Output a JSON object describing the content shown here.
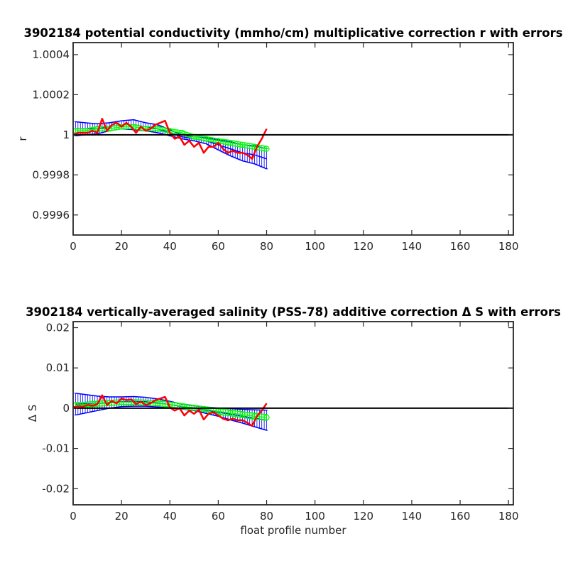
{
  "figure_title": "",
  "chart_data": [
    {
      "type": "line",
      "title": "3902184 potential conductivity (mmho/cm) multiplicative correction r with errors",
      "xlabel": "",
      "ylabel": "r",
      "xlim": [
        0,
        182
      ],
      "ylim": [
        0.9995,
        1.00046
      ],
      "x_ticks": [
        0,
        20,
        40,
        60,
        80,
        100,
        120,
        140,
        160,
        180
      ],
      "y_ticks": [
        0.9996,
        0.9998,
        1,
        1.0002,
        1.0004
      ],
      "y_tick_labels": [
        "0.9996",
        "0.9998",
        "1",
        "1.0002",
        "1.0004"
      ],
      "grid": false,
      "legend": "none",
      "reference_line": {
        "y": 1,
        "color": "#000000"
      },
      "series": [
        {
          "role": "fit_with_errorbars",
          "color": "#0000ff",
          "x": [
            1,
            5,
            10,
            15,
            20,
            25,
            30,
            35,
            40,
            45,
            50,
            55,
            60,
            65,
            70,
            75,
            80
          ],
          "y": [
            1.00003,
            1.00003,
            1.00003,
            1.00004,
            1.00005,
            1.00005,
            1.00004,
            1.00003,
            1.00001,
            0.99999,
            0.99998,
            0.99997,
            0.99995,
            0.99993,
            0.99991,
            0.9999,
            0.99988
          ],
          "err": [
            3.5e-05,
            3e-05,
            2.5e-05,
            2e-05,
            2e-05,
            2.5e-05,
            2e-05,
            2e-05,
            1.5e-05,
            1e-05,
            1e-05,
            1.5e-05,
            2.5e-05,
            3.5e-05,
            4e-05,
            4.5e-05,
            5e-05
          ]
        },
        {
          "role": "mid_fit_with_errorbars",
          "color": "#00ff00",
          "x": [
            1,
            5,
            10,
            15,
            20,
            25,
            30,
            35,
            40,
            45,
            50,
            55,
            60,
            65,
            70,
            75,
            80
          ],
          "y": [
            1.00002,
            1.00002,
            1.00003,
            1.00003,
            1.00004,
            1.00004,
            1.00003,
            1.00003,
            1.00002,
            1.00001,
            0.99999,
            0.99998,
            0.99997,
            0.99996,
            0.99995,
            0.99994,
            0.99993
          ],
          "err": [
            1e-05,
            1e-05,
            1e-05,
            1e-05,
            1e-05,
            1e-05,
            1e-05,
            1e-05,
            1e-05,
            1e-05,
            1e-05,
            1e-05,
            1e-05,
            1.2e-05,
            1.2e-05,
            1.2e-05,
            1.2e-05
          ]
        },
        {
          "role": "profile_values",
          "color": "#ff0000",
          "x": [
            0,
            2,
            4,
            6,
            8,
            10,
            12,
            14,
            16,
            18,
            20,
            22,
            24,
            26,
            28,
            30,
            32,
            34,
            36,
            38,
            40,
            42,
            44,
            46,
            48,
            50,
            52,
            54,
            56,
            58,
            60,
            62,
            64,
            66,
            68,
            70,
            72,
            74,
            76,
            78,
            80
          ],
          "y": [
            1.0,
            1.00001,
            1.00001,
            1.00001,
            1.00002,
            1.00001,
            1.00008,
            1.00002,
            1.00005,
            1.00006,
            1.00004,
            1.00006,
            1.00004,
            1.00001,
            1.00004,
            1.00002,
            1.00003,
            1.00005,
            1.00006,
            1.00007,
            1.00001,
            0.99998,
            0.99999,
            0.99995,
            0.99997,
            0.99994,
            0.99996,
            0.99991,
            0.99994,
            0.99994,
            0.99996,
            0.99993,
            0.99991,
            0.99992,
            0.99991,
            0.99991,
            0.9999,
            0.99988,
            0.99994,
            0.99998,
            1.00003
          ]
        }
      ]
    },
    {
      "type": "line",
      "title": "3902184 vertically-averaged salinity (PSS-78) additive correction Δ S with errors",
      "xlabel": "float profile number",
      "ylabel": "Δ S",
      "xlim": [
        0,
        182
      ],
      "ylim": [
        -0.024,
        0.0215
      ],
      "x_ticks": [
        0,
        20,
        40,
        60,
        80,
        100,
        120,
        140,
        160,
        180
      ],
      "y_ticks": [
        -0.02,
        -0.01,
        0,
        0.01,
        0.02
      ],
      "y_tick_labels": [
        "-0.02",
        "-0.01",
        "0",
        "0.01",
        "0.02"
      ],
      "grid": false,
      "legend": "none",
      "reference_line": {
        "y": 0,
        "color": "#000000"
      },
      "series": [
        {
          "role": "fit_with_errorbars",
          "color": "#0000ff",
          "x": [
            1,
            5,
            10,
            15,
            20,
            25,
            30,
            35,
            40,
            45,
            50,
            55,
            60,
            65,
            70,
            75,
            80
          ],
          "y": [
            0.001,
            0.0011,
            0.0012,
            0.0014,
            0.0016,
            0.0017,
            0.0016,
            0.0013,
            0.0009,
            0.0004,
            0.0,
            -0.0005,
            -0.001,
            -0.0015,
            -0.002,
            -0.0025,
            -0.003
          ],
          "err": [
            0.0027,
            0.0023,
            0.0018,
            0.0014,
            0.0012,
            0.0012,
            0.0011,
            0.001,
            0.0008,
            0.0006,
            0.0006,
            0.0008,
            0.001,
            0.0014,
            0.0017,
            0.0021,
            0.0025
          ]
        },
        {
          "role": "mid_fit_with_errorbars",
          "color": "#00ff00",
          "x": [
            1,
            5,
            10,
            15,
            20,
            25,
            30,
            35,
            40,
            45,
            50,
            55,
            60,
            65,
            70,
            75,
            80
          ],
          "y": [
            0.0008,
            0.0009,
            0.0011,
            0.0013,
            0.0015,
            0.0015,
            0.0014,
            0.0012,
            0.0009,
            0.0005,
            0.0001,
            -0.0003,
            -0.0008,
            -0.0012,
            -0.0016,
            -0.002,
            -0.0023
          ],
          "err": [
            0.0006,
            0.0006,
            0.0006,
            0.0006,
            0.0006,
            0.0006,
            0.0006,
            0.0006,
            0.0006,
            0.0006,
            0.0006,
            0.0006,
            0.0007,
            0.0007,
            0.0007,
            0.0007,
            0.0007
          ]
        },
        {
          "role": "profile_values",
          "color": "#ff0000",
          "x": [
            0,
            2,
            4,
            6,
            8,
            10,
            12,
            14,
            16,
            18,
            20,
            22,
            24,
            26,
            28,
            30,
            32,
            34,
            36,
            38,
            40,
            42,
            44,
            46,
            48,
            50,
            52,
            54,
            56,
            58,
            60,
            62,
            64,
            66,
            68,
            70,
            72,
            74,
            76,
            78,
            80
          ],
          "y": [
            0.0002,
            0.0005,
            0.0004,
            0.0008,
            0.0006,
            0.001,
            0.0032,
            0.0008,
            0.0018,
            0.0012,
            0.0024,
            0.002,
            0.0022,
            0.001,
            0.0016,
            0.0008,
            0.0012,
            0.002,
            0.0024,
            0.0028,
            0.0002,
            -0.0006,
            0.0,
            -0.0018,
            -0.0006,
            -0.0014,
            -0.0004,
            -0.0028,
            -0.0014,
            -0.001,
            -0.0018,
            -0.0026,
            -0.003,
            -0.0026,
            -0.003,
            -0.003,
            -0.0036,
            -0.0044,
            -0.002,
            -0.0006,
            0.0012
          ]
        }
      ]
    }
  ]
}
